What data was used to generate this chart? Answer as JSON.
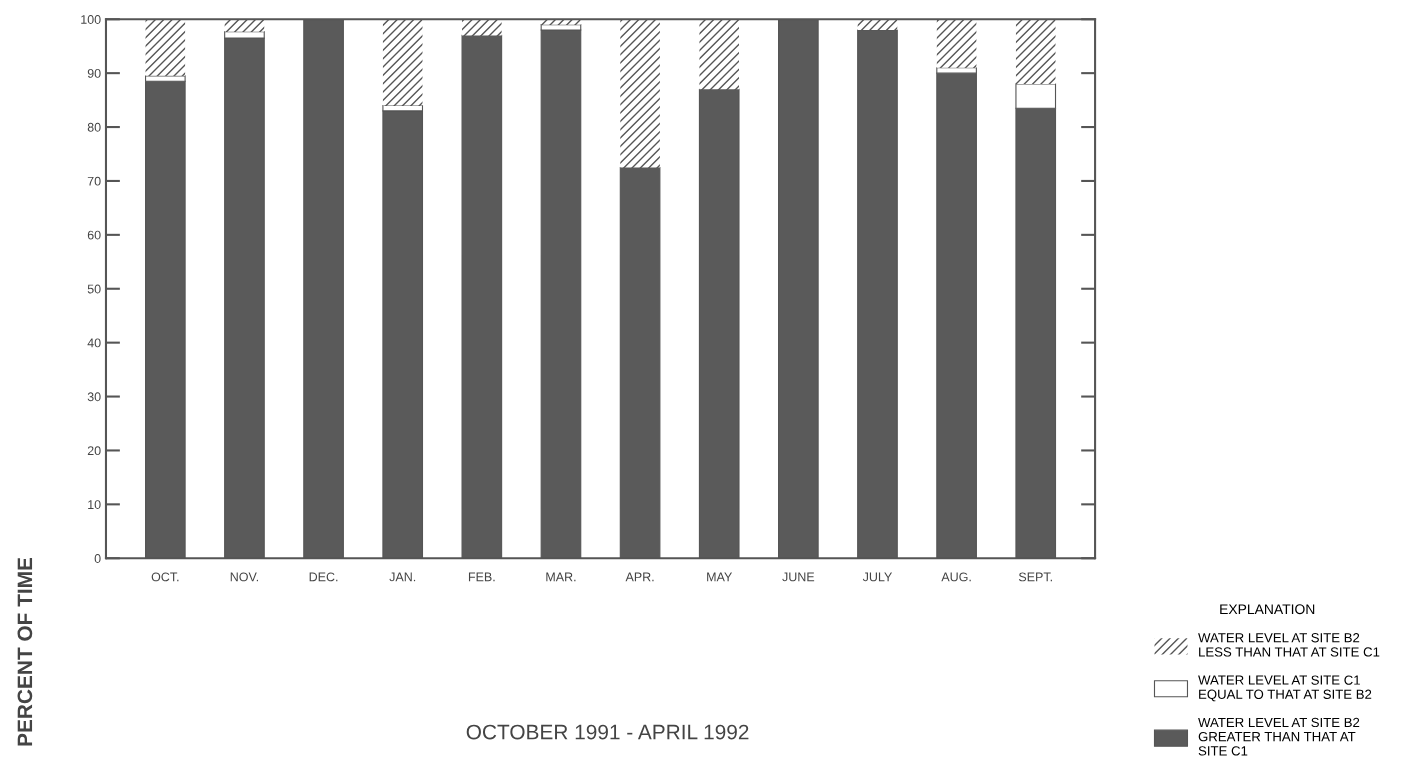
{
  "chart_data": {
    "type": "bar",
    "stacked": true,
    "annotations": [
      "OCTOBER 1991 - APRIL 1992"
    ],
    "ylabel": "PERCENT OF TIME",
    "legend_title": "EXPLANATION",
    "legend": "bottom right",
    "grid": false,
    "categories": [
      "OCT.",
      "NOV.",
      "DEC.",
      "JAN.",
      "FEB.",
      "MAR.",
      "APR.",
      "MAY",
      "JUNE",
      "JULY",
      "AUG.",
      "SEPT."
    ],
    "ylim": [
      0,
      100
    ],
    "yticks": [
      0,
      10,
      20,
      30,
      40,
      50,
      60,
      70,
      80,
      90,
      100
    ],
    "series": [
      {
        "name": "WATER LEVEL AT SITE B2\nGREATER THAN THAT AT\nSITE C1",
        "color": "#5a5a5a",
        "values": [
          88.5,
          96.5,
          100,
          83,
          97,
          98,
          72.5,
          87,
          100,
          98,
          90,
          83.5
        ]
      },
      {
        "name": "WATER LEVEL AT SITE C1\nEQUAL TO THAT AT SITE B2",
        "color": "#ffffff",
        "values": [
          1,
          1.2,
          0,
          1,
          0,
          1,
          0,
          0,
          0,
          0,
          1,
          4.5
        ]
      },
      {
        "name": "WATER LEVEL AT SITE B2\nLESS THAN THAT AT SITE C1",
        "color": "#ffffff",
        "values": [
          10.5,
          2.3,
          0,
          16,
          3,
          1,
          27.5,
          13,
          0,
          2,
          9,
          12
        ]
      }
    ]
  }
}
